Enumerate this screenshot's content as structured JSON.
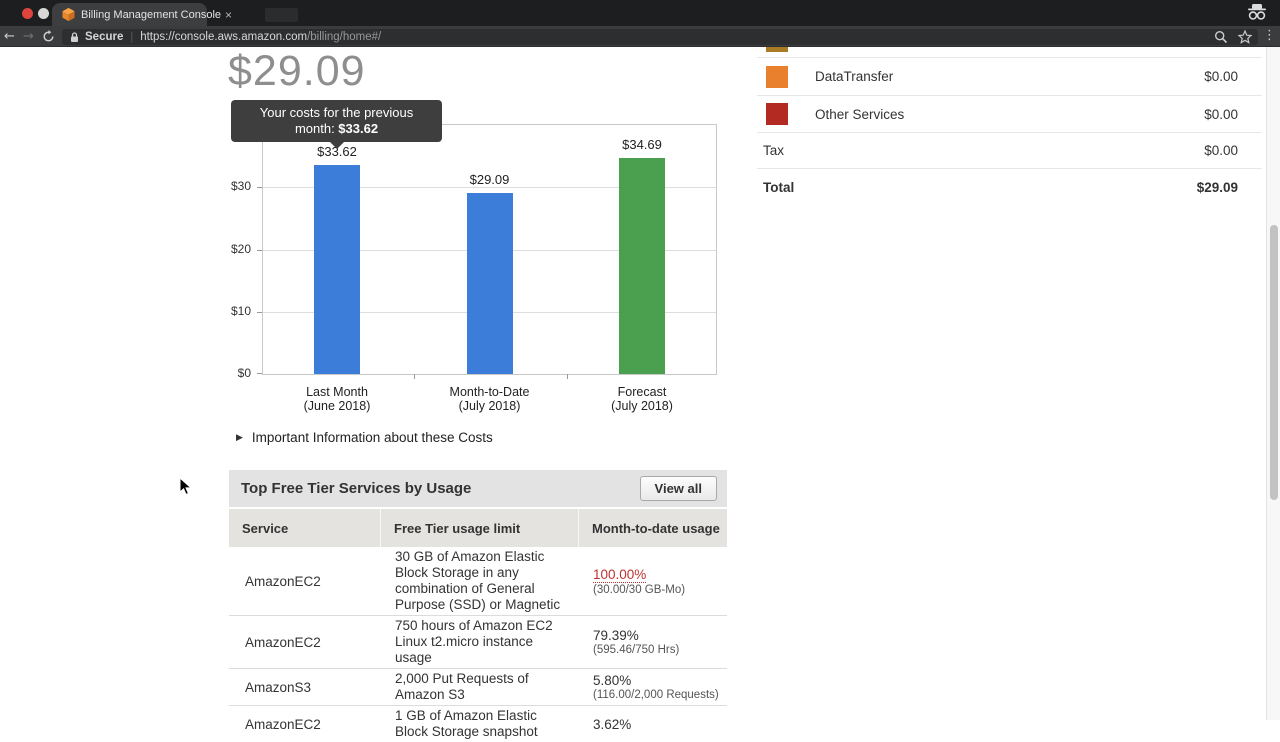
{
  "browser": {
    "tab_title": "Billing Management Console",
    "tab_close": "×",
    "back_glyph": "←",
    "forward_glyph": "→",
    "menu_dots_glyph": "⋮",
    "secure_label": "Secure",
    "url_separator": "|",
    "url_host": "https://console.aws.amazon.com",
    "url_path": "/billing/home#/"
  },
  "page": {
    "current_amount": "$29.09",
    "tooltip": {
      "line1": "Your costs for the previous",
      "line2_label": "month: ",
      "line2_value": "$33.62"
    },
    "disclosure_triangle": "▶",
    "disclosure_label": "Important Information about these Costs"
  },
  "chart_data": {
    "type": "bar",
    "title": "",
    "xlabel": "",
    "ylabel": "",
    "categories": [
      "Last Month\n(June 2018)",
      "Month-to-Date\n(July 2018)",
      "Forecast\n(July 2018)"
    ],
    "values": [
      33.62,
      29.09,
      34.69
    ],
    "bar_labels": [
      "$33.62",
      "$29.09",
      "$34.69"
    ],
    "bar_colors": [
      "#3b7dd8",
      "#3b7dd8",
      "#4ba04f"
    ],
    "yticks": [
      0,
      10,
      20,
      30
    ],
    "ytick_labels": [
      "$0",
      "$10",
      "$20",
      "$30"
    ],
    "ylim": [
      0,
      40
    ],
    "grid": true,
    "legend": false
  },
  "free_tier_table": {
    "title": "Top Free Tier Services by Usage",
    "view_all_label": "View all",
    "columns": [
      "Service",
      "Free Tier usage limit",
      "Month-to-date usage"
    ],
    "rows": [
      {
        "service": "AmazonEC2",
        "limit": "30 GB of Amazon Elastic Block Storage in any combination of General Purpose (SSD) or Magnetic",
        "usage_percent": "100.00%",
        "usage_detail": "(30.00/30 GB-Mo)",
        "alert": true
      },
      {
        "service": "AmazonEC2",
        "limit": "750 hours of Amazon EC2 Linux t2.micro instance usage",
        "usage_percent": "79.39%",
        "usage_detail": "(595.46/750 Hrs)",
        "alert": false
      },
      {
        "service": "AmazonS3",
        "limit": "2,000 Put Requests of Amazon S3",
        "usage_percent": "5.80%",
        "usage_detail": "(116.00/2,000 Requests)",
        "alert": false
      },
      {
        "service": "AmazonEC2",
        "limit": "1 GB of Amazon Elastic Block Storage snapshot",
        "usage_percent": "3.62%",
        "usage_detail": "",
        "alert": false
      }
    ]
  },
  "summary_panel": {
    "partial_swatch_color": "#a87b24",
    "rows": [
      {
        "label": "DataTransfer",
        "value": "$0.00",
        "swatch": "#e8802d",
        "bold": false
      },
      {
        "label": "Other Services",
        "value": "$0.00",
        "swatch": "#b22a22",
        "bold": false
      },
      {
        "label": "Tax",
        "value": "$0.00",
        "swatch": null,
        "bold": false
      },
      {
        "label": "Total",
        "value": "$29.09",
        "swatch": null,
        "bold": true
      }
    ]
  }
}
